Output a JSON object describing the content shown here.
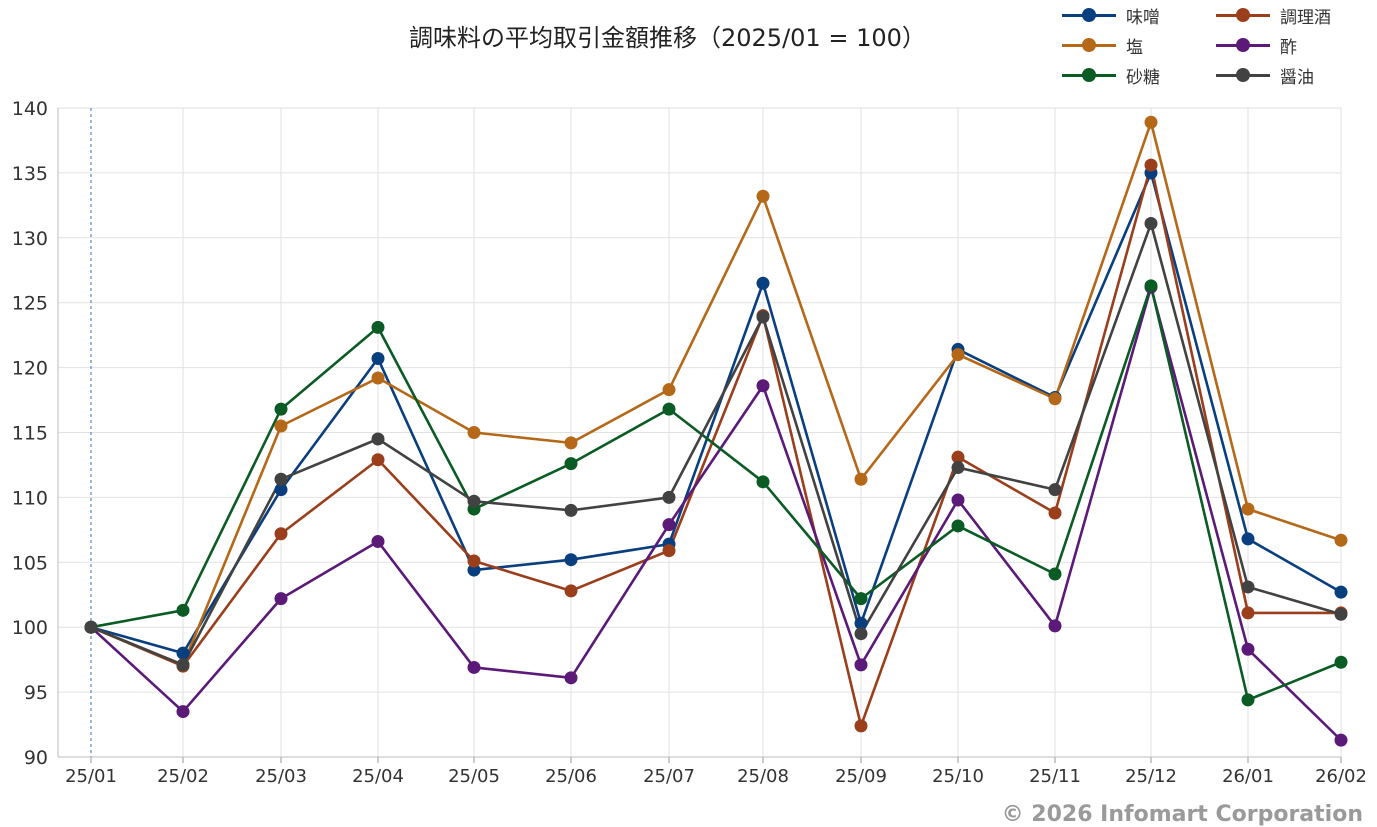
{
  "chart_data": {
    "type": "line",
    "title": "調味料の平均取引金額推移（2025/01 = 100）",
    "xlabel": "",
    "ylabel": "",
    "categories": [
      "25/01",
      "25/02",
      "25/03",
      "25/04",
      "25/05",
      "25/06",
      "25/07",
      "25/08",
      "25/09",
      "25/10",
      "25/11",
      "25/12",
      "26/01",
      "26/02"
    ],
    "ylim": [
      90,
      140
    ],
    "yticks": [
      90,
      95,
      100,
      105,
      110,
      115,
      120,
      125,
      130,
      135,
      140
    ],
    "grid": true,
    "legend_position": "top-right",
    "series": [
      {
        "name": "味噌",
        "color": "#0a3f7f",
        "values": [
          100,
          98.0,
          110.6,
          120.7,
          104.4,
          105.2,
          106.4,
          126.5,
          100.3,
          121.4,
          117.7,
          135.0,
          106.8,
          102.7
        ]
      },
      {
        "name": "調理酒",
        "color": "#9a3e1c",
        "values": [
          100,
          97.0,
          107.2,
          112.9,
          105.1,
          102.8,
          105.9,
          124.0,
          92.4,
          113.1,
          108.8,
          135.6,
          101.1,
          101.1
        ]
      },
      {
        "name": "塩",
        "color": "#b46818",
        "values": [
          100,
          97.1,
          115.5,
          119.2,
          115.0,
          114.2,
          118.3,
          133.2,
          111.4,
          121.0,
          117.6,
          138.9,
          109.1,
          106.7
        ]
      },
      {
        "name": "酢",
        "color": "#5b1a78",
        "values": [
          100,
          93.5,
          102.2,
          106.6,
          96.9,
          96.1,
          107.9,
          118.6,
          97.1,
          109.8,
          100.1,
          126.2,
          98.3,
          91.3
        ]
      },
      {
        "name": "砂糖",
        "color": "#0b5b25",
        "values": [
          100,
          101.3,
          116.8,
          123.1,
          109.1,
          112.6,
          116.8,
          111.2,
          102.2,
          107.8,
          104.1,
          126.3,
          94.4,
          97.3
        ]
      },
      {
        "name": "醤油",
        "color": "#424242",
        "values": [
          100,
          97.1,
          111.4,
          114.5,
          109.7,
          109.0,
          110.0,
          123.9,
          99.5,
          112.3,
          110.6,
          131.1,
          103.1,
          101.0
        ]
      }
    ]
  },
  "copyright": "© 2026 Infomart Corporation"
}
